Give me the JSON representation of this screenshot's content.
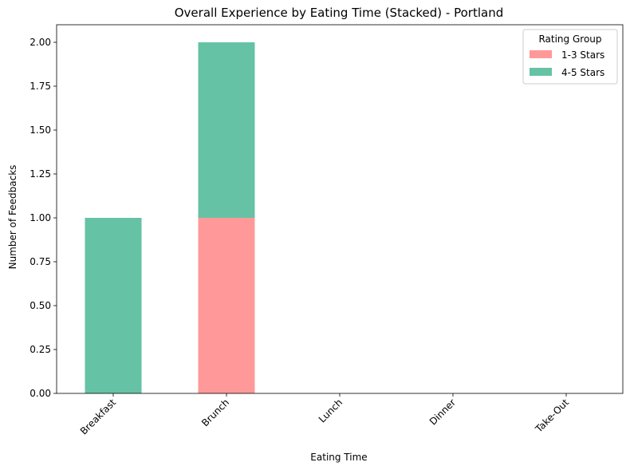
{
  "chart_data": {
    "type": "bar",
    "stacked": true,
    "title": "Overall Experience by Eating Time (Stacked) - Portland",
    "xlabel": "Eating Time",
    "ylabel": "Number of Feedbacks",
    "categories": [
      "Breakfast",
      "Brunch",
      "Lunch",
      "Dinner",
      "Take-Out"
    ],
    "series": [
      {
        "name": "1-3 Stars",
        "values": [
          0,
          1,
          0,
          0,
          0
        ],
        "color": "#ff9999"
      },
      {
        "name": "4-5 Stars",
        "values": [
          1,
          1,
          0,
          0,
          0
        ],
        "color": "#66c2a5"
      }
    ],
    "ylim": [
      0,
      2.1
    ],
    "yticks": [
      "0.00",
      "0.25",
      "0.50",
      "0.75",
      "1.00",
      "1.25",
      "1.50",
      "1.75",
      "2.00"
    ],
    "grid": false,
    "legend": {
      "title": "Rating Group",
      "placement": "top-right"
    }
  }
}
